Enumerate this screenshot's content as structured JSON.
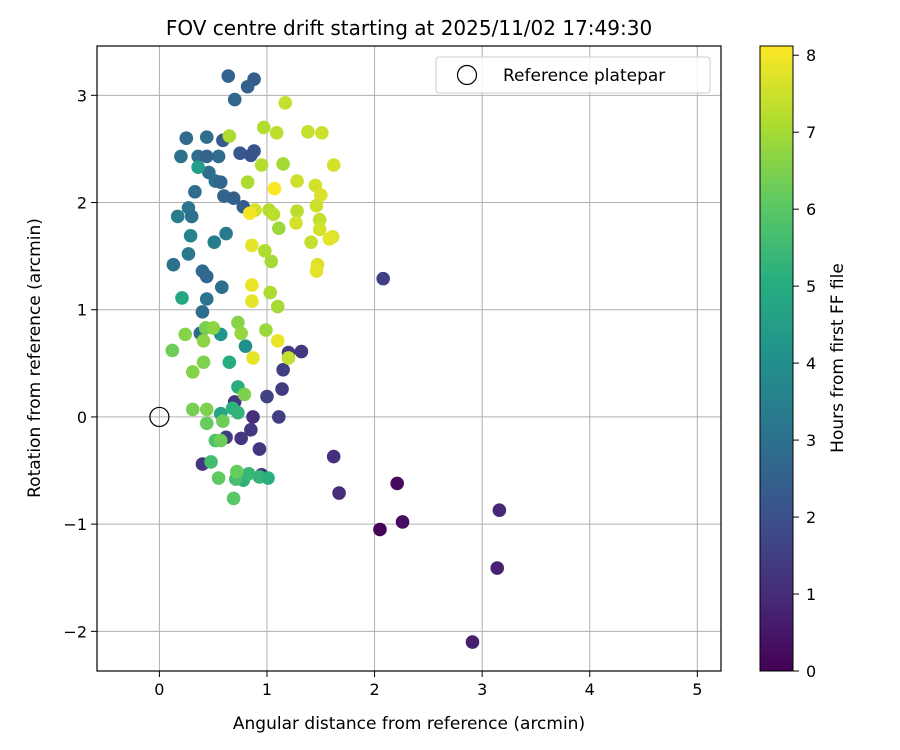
{
  "chart_data": {
    "type": "scatter",
    "title": "FOV centre drift starting at 2025/11/02 17:49:30",
    "xlabel": "Angular distance from reference (arcmin)",
    "ylabel": "Rotation from reference (arcmin)",
    "xlim": [
      -0.58,
      5.22
    ],
    "ylim": [
      -2.37,
      3.46
    ],
    "xticks": [
      0,
      1,
      2,
      3,
      4,
      5
    ],
    "yticks": [
      -2,
      -1,
      0,
      1,
      2,
      3
    ],
    "grid": true,
    "legend": {
      "position": "top-right",
      "entries": [
        "Reference platepar"
      ]
    },
    "reference_point": {
      "x": 0,
      "y": 0
    },
    "colorbar": {
      "label": "Hours from first FF file",
      "min": 0,
      "max": 8.12,
      "ticks": [
        0,
        1,
        2,
        3,
        4,
        5,
        6,
        7,
        8
      ],
      "colormap": "viridis"
    },
    "series": [
      {
        "name": "FOV centre drift",
        "points": [
          {
            "x": 2.05,
            "y": -1.05,
            "h": 0.1
          },
          {
            "x": 2.21,
            "y": -0.62,
            "h": 0.2
          },
          {
            "x": 2.26,
            "y": -0.98,
            "h": 0.3
          },
          {
            "x": 2.91,
            "y": -2.1,
            "h": 0.7
          },
          {
            "x": 3.14,
            "y": -1.41,
            "h": 0.8
          },
          {
            "x": 3.16,
            "y": -0.87,
            "h": 0.9
          },
          {
            "x": 1.67,
            "y": -0.71,
            "h": 1.0
          },
          {
            "x": 1.62,
            "y": -0.37,
            "h": 1.1
          },
          {
            "x": 0.95,
            "y": -0.54,
            "h": 1.2
          },
          {
            "x": 0.93,
            "y": -0.3,
            "h": 1.2
          },
          {
            "x": 0.85,
            "y": -0.12,
            "h": 1.3
          },
          {
            "x": 0.87,
            "y": 0.0,
            "h": 1.1
          },
          {
            "x": 0.76,
            "y": -0.2,
            "h": 1.3
          },
          {
            "x": 0.62,
            "y": -0.19,
            "h": 1.4
          },
          {
            "x": 0.4,
            "y": -0.44,
            "h": 1.3
          },
          {
            "x": 1.11,
            "y": 0.0,
            "h": 1.5
          },
          {
            "x": 0.7,
            "y": 0.14,
            "h": 1.2
          },
          {
            "x": 1.0,
            "y": 0.19,
            "h": 1.6
          },
          {
            "x": 1.14,
            "y": 0.26,
            "h": 1.4
          },
          {
            "x": 1.15,
            "y": 0.44,
            "h": 1.5
          },
          {
            "x": 1.2,
            "y": 0.6,
            "h": 1.4
          },
          {
            "x": 1.32,
            "y": 0.61,
            "h": 1.3
          },
          {
            "x": 2.08,
            "y": 1.29,
            "h": 1.5
          },
          {
            "x": 0.85,
            "y": 2.44,
            "h": 2.0
          },
          {
            "x": 0.88,
            "y": 2.48,
            "h": 2.1
          },
          {
            "x": 0.75,
            "y": 2.46,
            "h": 2.2
          },
          {
            "x": 0.59,
            "y": 2.58,
            "h": 2.3
          },
          {
            "x": 0.64,
            "y": 3.18,
            "h": 2.6
          },
          {
            "x": 0.88,
            "y": 3.15,
            "h": 2.4
          },
          {
            "x": 0.82,
            "y": 3.08,
            "h": 2.5
          },
          {
            "x": 0.7,
            "y": 2.96,
            "h": 2.7
          },
          {
            "x": 0.25,
            "y": 2.6,
            "h": 2.8
          },
          {
            "x": 0.44,
            "y": 2.61,
            "h": 2.9
          },
          {
            "x": 0.2,
            "y": 2.43,
            "h": 3.0
          },
          {
            "x": 0.36,
            "y": 2.43,
            "h": 2.8
          },
          {
            "x": 0.44,
            "y": 2.43,
            "h": 2.6
          },
          {
            "x": 0.55,
            "y": 2.43,
            "h": 2.8
          },
          {
            "x": 0.46,
            "y": 2.28,
            "h": 2.9
          },
          {
            "x": 0.52,
            "y": 2.2,
            "h": 3.0
          },
          {
            "x": 0.57,
            "y": 2.19,
            "h": 2.7
          },
          {
            "x": 0.33,
            "y": 2.1,
            "h": 2.9
          },
          {
            "x": 0.6,
            "y": 2.06,
            "h": 2.6
          },
          {
            "x": 0.69,
            "y": 2.04,
            "h": 2.5
          },
          {
            "x": 0.78,
            "y": 1.96,
            "h": 2.4
          },
          {
            "x": 0.27,
            "y": 1.95,
            "h": 3.2
          },
          {
            "x": 0.17,
            "y": 1.87,
            "h": 3.4
          },
          {
            "x": 0.3,
            "y": 1.87,
            "h": 3.0
          },
          {
            "x": 0.62,
            "y": 1.71,
            "h": 3.3
          },
          {
            "x": 0.29,
            "y": 1.69,
            "h": 3.6
          },
          {
            "x": 0.51,
            "y": 1.63,
            "h": 3.4
          },
          {
            "x": 0.27,
            "y": 1.52,
            "h": 3.2
          },
          {
            "x": 0.13,
            "y": 1.42,
            "h": 3.0
          },
          {
            "x": 0.4,
            "y": 1.36,
            "h": 2.8
          },
          {
            "x": 0.44,
            "y": 1.31,
            "h": 2.7
          },
          {
            "x": 0.58,
            "y": 1.21,
            "h": 2.9
          },
          {
            "x": 0.44,
            "y": 1.1,
            "h": 3.1
          },
          {
            "x": 0.4,
            "y": 0.98,
            "h": 2.9
          },
          {
            "x": 0.21,
            "y": 1.11,
            "h": 4.8
          },
          {
            "x": 0.38,
            "y": 0.78,
            "h": 2.8
          },
          {
            "x": 0.36,
            "y": 2.33,
            "h": 4.5
          },
          {
            "x": 0.57,
            "y": 0.77,
            "h": 4.2
          },
          {
            "x": 0.8,
            "y": 0.66,
            "h": 4.0
          },
          {
            "x": 0.65,
            "y": 0.51,
            "h": 5.0
          },
          {
            "x": 0.73,
            "y": 0.28,
            "h": 5.1
          },
          {
            "x": 0.57,
            "y": 0.03,
            "h": 4.7
          },
          {
            "x": 0.68,
            "y": 0.08,
            "h": 5.2
          },
          {
            "x": 0.73,
            "y": 0.04,
            "h": 5.3
          },
          {
            "x": 0.48,
            "y": -0.42,
            "h": 5.6
          },
          {
            "x": 0.52,
            "y": -0.22,
            "h": 5.8
          },
          {
            "x": 0.78,
            "y": -0.59,
            "h": 5.2
          },
          {
            "x": 0.83,
            "y": -0.53,
            "h": 5.4
          },
          {
            "x": 0.93,
            "y": -0.56,
            "h": 5.3
          },
          {
            "x": 1.01,
            "y": -0.57,
            "h": 5.1
          },
          {
            "x": 0.71,
            "y": -0.58,
            "h": 5.7
          },
          {
            "x": 0.69,
            "y": -0.76,
            "h": 6.0
          },
          {
            "x": 0.72,
            "y": -0.51,
            "h": 6.2
          },
          {
            "x": 0.55,
            "y": -0.57,
            "h": 6.1
          },
          {
            "x": 0.59,
            "y": -0.04,
            "h": 6.3
          },
          {
            "x": 0.44,
            "y": -0.06,
            "h": 6.2
          },
          {
            "x": 0.31,
            "y": 0.07,
            "h": 6.4
          },
          {
            "x": 0.44,
            "y": 0.07,
            "h": 6.5
          },
          {
            "x": 0.31,
            "y": 0.42,
            "h": 6.6
          },
          {
            "x": 0.12,
            "y": 0.62,
            "h": 6.3
          },
          {
            "x": 0.41,
            "y": 0.51,
            "h": 6.5
          },
          {
            "x": 0.41,
            "y": 0.71,
            "h": 6.7
          },
          {
            "x": 0.24,
            "y": 0.77,
            "h": 6.6
          },
          {
            "x": 0.43,
            "y": 0.83,
            "h": 6.4
          },
          {
            "x": 0.5,
            "y": 0.83,
            "h": 6.7
          },
          {
            "x": 0.73,
            "y": 0.88,
            "h": 6.6
          },
          {
            "x": 0.76,
            "y": 0.78,
            "h": 6.8
          },
          {
            "x": 0.79,
            "y": 0.21,
            "h": 6.5
          },
          {
            "x": 0.57,
            "y": -0.22,
            "h": 6.3
          },
          {
            "x": 0.99,
            "y": 0.81,
            "h": 6.9
          },
          {
            "x": 1.1,
            "y": 1.03,
            "h": 7.0
          },
          {
            "x": 1.03,
            "y": 1.16,
            "h": 7.1
          },
          {
            "x": 1.04,
            "y": 1.45,
            "h": 7.0
          },
          {
            "x": 0.98,
            "y": 1.55,
            "h": 7.1
          },
          {
            "x": 1.11,
            "y": 1.76,
            "h": 6.9
          },
          {
            "x": 1.02,
            "y": 1.93,
            "h": 7.2
          },
          {
            "x": 1.06,
            "y": 1.89,
            "h": 7.3
          },
          {
            "x": 0.82,
            "y": 2.19,
            "h": 7.1
          },
          {
            "x": 0.95,
            "y": 2.35,
            "h": 7.2
          },
          {
            "x": 1.15,
            "y": 2.36,
            "h": 7.0
          },
          {
            "x": 1.09,
            "y": 2.65,
            "h": 7.3
          },
          {
            "x": 0.97,
            "y": 2.7,
            "h": 7.2
          },
          {
            "x": 0.65,
            "y": 2.62,
            "h": 7.1
          },
          {
            "x": 1.17,
            "y": 2.93,
            "h": 7.4
          },
          {
            "x": 1.38,
            "y": 2.66,
            "h": 7.4
          },
          {
            "x": 1.51,
            "y": 2.65,
            "h": 7.5
          },
          {
            "x": 1.28,
            "y": 2.2,
            "h": 7.5
          },
          {
            "x": 1.62,
            "y": 2.35,
            "h": 7.6
          },
          {
            "x": 1.45,
            "y": 2.16,
            "h": 7.6
          },
          {
            "x": 1.5,
            "y": 2.07,
            "h": 7.7
          },
          {
            "x": 1.46,
            "y": 1.97,
            "h": 7.5
          },
          {
            "x": 1.28,
            "y": 1.92,
            "h": 7.3
          },
          {
            "x": 1.49,
            "y": 1.84,
            "h": 7.4
          },
          {
            "x": 1.27,
            "y": 1.81,
            "h": 7.6
          },
          {
            "x": 1.49,
            "y": 1.75,
            "h": 7.6
          },
          {
            "x": 1.61,
            "y": 1.68,
            "h": 7.7
          },
          {
            "x": 1.58,
            "y": 1.66,
            "h": 7.8
          },
          {
            "x": 1.41,
            "y": 1.63,
            "h": 7.4
          },
          {
            "x": 1.47,
            "y": 1.42,
            "h": 7.7
          },
          {
            "x": 1.46,
            "y": 1.36,
            "h": 7.8
          },
          {
            "x": 0.86,
            "y": 1.6,
            "h": 7.8
          },
          {
            "x": 0.89,
            "y": 1.93,
            "h": 7.6
          },
          {
            "x": 0.84,
            "y": 1.9,
            "h": 8.0
          },
          {
            "x": 1.07,
            "y": 2.13,
            "h": 8.1
          },
          {
            "x": 0.86,
            "y": 1.23,
            "h": 7.9
          },
          {
            "x": 0.86,
            "y": 1.08,
            "h": 7.8
          },
          {
            "x": 1.1,
            "y": 0.71,
            "h": 7.9
          },
          {
            "x": 0.87,
            "y": 0.55,
            "h": 7.8
          },
          {
            "x": 1.2,
            "y": 0.55,
            "h": 7.4
          }
        ]
      }
    ]
  }
}
